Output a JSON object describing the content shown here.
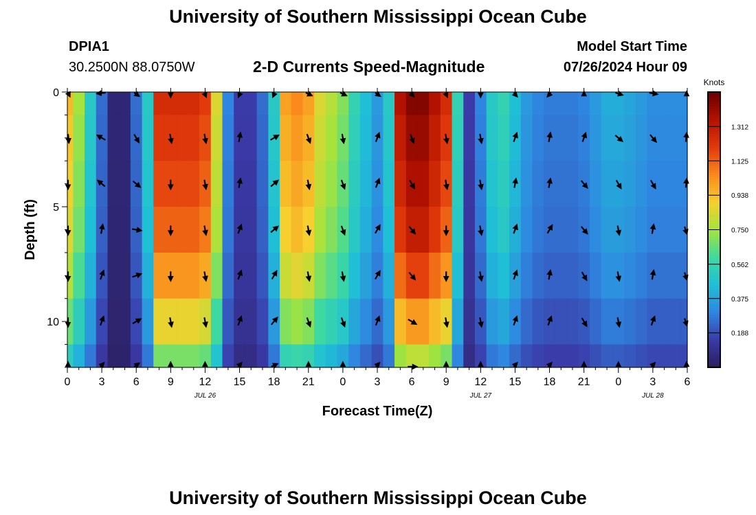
{
  "page": {
    "title": "University of Southern Mississippi Ocean Cube",
    "footer_title": "University of Southern Mississippi Ocean Cube",
    "station": "DPIA1",
    "coordinates": "30.2500N  88.0750W",
    "subtitle": "2-D Currents Speed-Magnitude",
    "model_start_label": "Model Start Time",
    "model_start_value": "07/26/2024 Hour 09"
  },
  "chart_data": {
    "type": "heatmap",
    "title": "2-D Currents Speed-Magnitude",
    "xlabel": "Forecast Time(Z)",
    "ylabel": "Depth (ft)",
    "x_hours": [
      0,
      1,
      2,
      3,
      4,
      5,
      6,
      7,
      8,
      9,
      10,
      11,
      12,
      13,
      14,
      15,
      16,
      17,
      18,
      19,
      20,
      21,
      22,
      23,
      24,
      25,
      26,
      27,
      28,
      29,
      30,
      31,
      32,
      33,
      34,
      35,
      36,
      37,
      38,
      39,
      40,
      41,
      42,
      43,
      44,
      45,
      46,
      47,
      48,
      49,
      50,
      51,
      52,
      53,
      54
    ],
    "x_range": [
      0,
      54
    ],
    "x_ticks": [
      0,
      3,
      6,
      9,
      12,
      15,
      18,
      21,
      24,
      27,
      30,
      33,
      36,
      39,
      42,
      45,
      48,
      51,
      54
    ],
    "x_tick_labels": [
      "0",
      "3",
      "6",
      "9",
      "12",
      "15",
      "18",
      "21",
      "0",
      "3",
      "6",
      "9",
      "12",
      "15",
      "18",
      "21",
      "0",
      "3",
      "6"
    ],
    "date_labels": [
      {
        "hour": 12,
        "text": "JUL 26"
      },
      {
        "hour": 36,
        "text": "JUL 27"
      },
      {
        "hour": 51,
        "text": "JUL 28"
      }
    ],
    "depth_levels_ft": [
      0,
      2,
      4,
      6,
      8,
      10,
      12
    ],
    "y_range": [
      0,
      12
    ],
    "y_ticks": [
      0,
      5,
      10
    ],
    "y_tick_labels": [
      "0",
      "5",
      "10"
    ],
    "colorbar": {
      "label": "Knots",
      "min": 0,
      "max": 1.5,
      "ticks": [
        0.188,
        0.375,
        0.562,
        0.75,
        0.938,
        1.125,
        1.312
      ],
      "tick_labels": [
        "0.188",
        "0.375",
        "0.562",
        "0.750",
        "0.938",
        "1.125",
        "1.312"
      ],
      "colors": [
        "#2a1e5c",
        "#3a3aa8",
        "#2f86e0",
        "#1fc0d6",
        "#3fd9a0",
        "#a4e43c",
        "#f5d02e",
        "#fa8a1c",
        "#e23a0c",
        "#b41200",
        "#6a0000"
      ]
    },
    "speed_profile_knots": [
      0.95,
      0.75,
      0.5,
      0.25,
      0.05,
      0.05,
      0.25,
      0.5,
      1.25,
      1.25,
      1.25,
      1.25,
      1.2,
      0.85,
      0.3,
      0.15,
      0.15,
      0.25,
      0.5,
      1.0,
      1.05,
      1.0,
      0.85,
      0.78,
      0.7,
      0.55,
      0.45,
      0.35,
      0.5,
      1.35,
      1.45,
      1.45,
      1.35,
      1.25,
      0.55,
      0.15,
      0.3,
      0.5,
      0.55,
      0.45,
      0.35,
      0.3,
      0.28,
      0.28,
      0.28,
      0.3,
      0.35,
      0.4,
      0.4,
      0.38,
      0.35,
      0.32,
      0.32,
      0.32,
      0.32
    ],
    "depth_factor": [
      1.0,
      0.97,
      0.94,
      0.9,
      0.82,
      0.7,
      0.55
    ],
    "vector_columns_hours": [
      0,
      3,
      6,
      9,
      12,
      15,
      18,
      21,
      24,
      27,
      30,
      33,
      36,
      39,
      42,
      45,
      48,
      51,
      54
    ],
    "vector_angles_deg": [
      [
        150,
        250,
        150,
        180,
        170,
        190,
        190,
        140,
        140,
        150,
        160,
        170,
        180,
        160,
        200,
        0,
        130,
        120,
        0
      ],
      [
        160,
        300,
        150,
        170,
        170,
        10,
        60,
        160,
        170,
        20,
        160,
        170,
        170,
        20,
        10,
        20,
        130,
        140,
        20
      ],
      [
        170,
        310,
        130,
        180,
        170,
        10,
        50,
        170,
        160,
        20,
        150,
        170,
        170,
        10,
        10,
        140,
        150,
        150,
        20
      ],
      [
        170,
        10,
        100,
        180,
        170,
        20,
        50,
        170,
        160,
        30,
        140,
        180,
        170,
        20,
        30,
        140,
        170,
        10,
        140
      ],
      [
        170,
        20,
        70,
        180,
        170,
        20,
        30,
        170,
        170,
        30,
        140,
        180,
        170,
        20,
        10,
        150,
        170,
        10,
        140
      ],
      [
        170,
        20,
        60,
        170,
        170,
        20,
        40,
        160,
        160,
        20,
        120,
        170,
        170,
        20,
        20,
        150,
        170,
        20,
        140
      ],
      [
        0,
        20,
        30,
        0,
        0,
        20,
        40,
        0,
        0,
        20,
        80,
        0,
        0,
        20,
        20,
        0,
        0,
        20,
        0
      ]
    ]
  }
}
